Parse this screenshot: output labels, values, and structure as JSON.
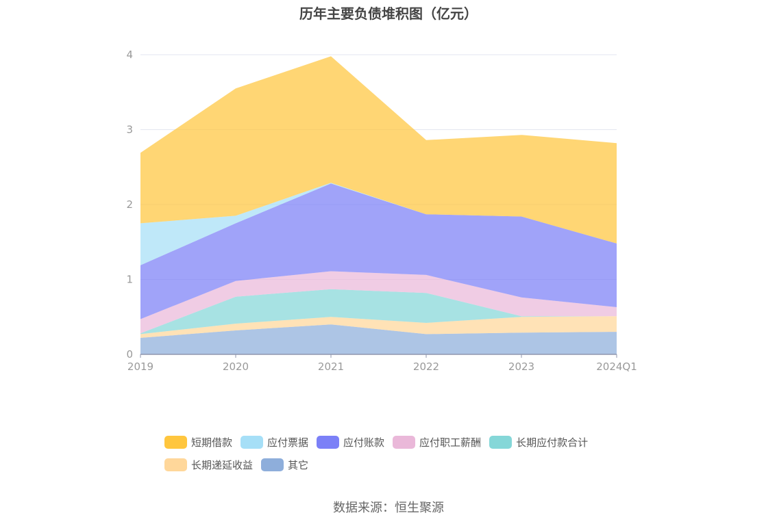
{
  "chart_data": {
    "type": "area",
    "stacked": true,
    "title": "历年主要负债堆积图（亿元）",
    "xlabel": "",
    "ylabel": "",
    "categories": [
      "2019",
      "2020",
      "2021",
      "2022",
      "2023",
      "2024Q1"
    ],
    "ylim": [
      0,
      4
    ],
    "yticks": [
      "0",
      "1",
      "2",
      "3",
      "4"
    ],
    "grid": true,
    "legend_position": "bottom",
    "series": [
      {
        "name": "其它",
        "color": "#8eaedb",
        "values": [
          0.22,
          0.32,
          0.4,
          0.27,
          0.29,
          0.3
        ]
      },
      {
        "name": "长期递延收益",
        "color": "#ffd79a",
        "values": [
          0.05,
          0.09,
          0.1,
          0.15,
          0.21,
          0.21
        ]
      },
      {
        "name": "长期应付款合计",
        "color": "#85d7d8",
        "values": [
          0.01,
          0.36,
          0.37,
          0.4,
          0.01,
          0.0
        ]
      },
      {
        "name": "应付职工薪酬",
        "color": "#eab8d9",
        "values": [
          0.19,
          0.21,
          0.24,
          0.24,
          0.25,
          0.12
        ]
      },
      {
        "name": "应付账款",
        "color": "#7b80f7",
        "values": [
          0.72,
          0.77,
          1.17,
          0.81,
          1.08,
          0.85
        ]
      },
      {
        "name": "应付票据",
        "color": "#a6dff7",
        "values": [
          0.56,
          0.1,
          0.01,
          0.0,
          0.0,
          0.0
        ]
      },
      {
        "name": "短期借款",
        "color": "#ffc63e",
        "values": [
          0.94,
          1.7,
          1.69,
          0.99,
          1.09,
          1.34
        ]
      }
    ],
    "legend_order": [
      "短期借款",
      "应付票据",
      "应付账款",
      "应付职工薪酬",
      "长期应付款合计",
      "长期递延收益",
      "其它"
    ]
  },
  "source": "数据来源：恒生聚源"
}
